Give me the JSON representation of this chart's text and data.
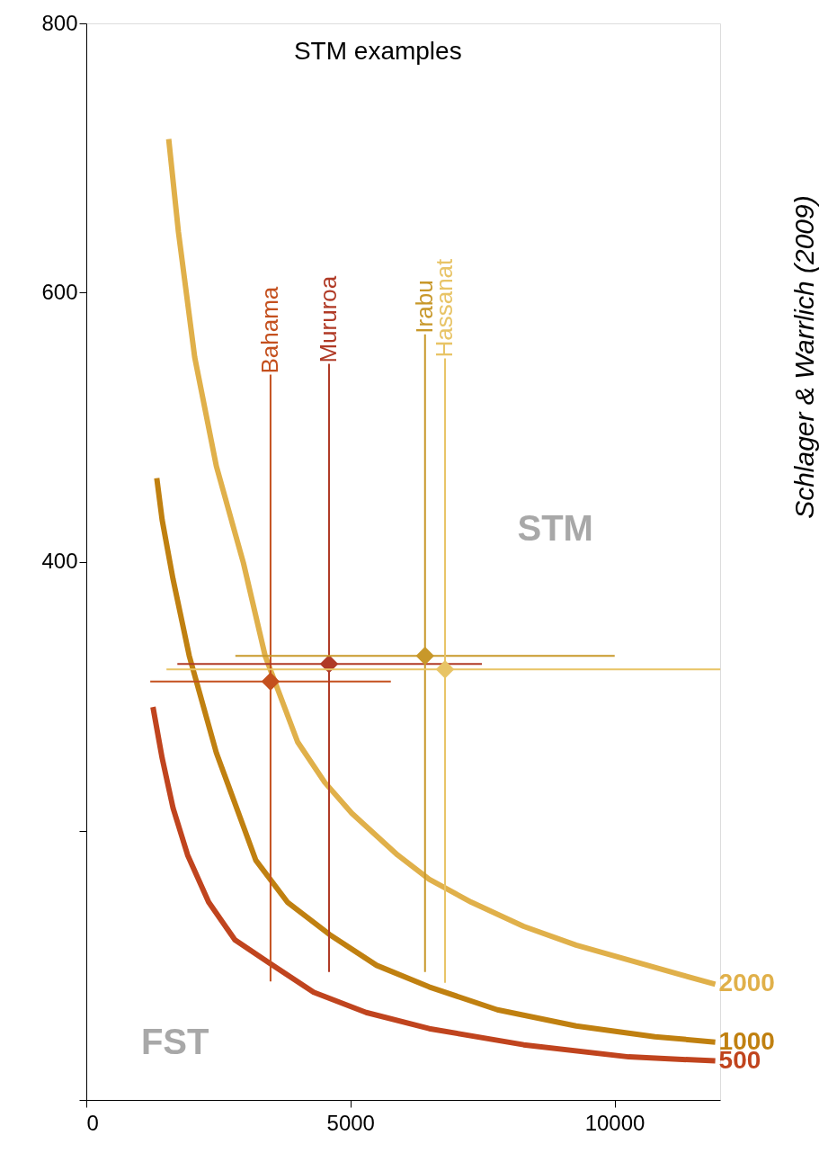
{
  "chart_data": {
    "type": "line",
    "title": "STM examples",
    "xlim": [
      0,
      12000
    ],
    "xticks": [
      0,
      5000,
      10000
    ],
    "ylim": [
      0,
      800
    ],
    "yticks": [
      {
        "value": 0,
        "label": null
      },
      {
        "value": 200,
        "label": null
      },
      400,
      600,
      800
    ],
    "grid": false,
    "marker": "none",
    "line_style": "solid",
    "series": [
      {
        "name": "2000",
        "color": "#e0b04a",
        "x": [
          1560,
          1744,
          2052,
          2462,
          2975,
          3386,
          4001,
          4514,
          5027,
          5894,
          6491,
          7286,
          8280,
          9274,
          10268,
          11262,
          11908
        ],
        "values": [
          714,
          645,
          552,
          471,
          399,
          330,
          266,
          236,
          213,
          182,
          164,
          147,
          129,
          115,
          104,
          93,
          86
        ]
      },
      {
        "name": "1000",
        "color": "#c08010",
        "x": [
          1334,
          1436,
          1642,
          1949,
          2462,
          3211,
          3807,
          4602,
          5497,
          6491,
          7783,
          9274,
          10765,
          11908
        ],
        "values": [
          462,
          431,
          387,
          330,
          258,
          178,
          147,
          123,
          100,
          84,
          67,
          55,
          47,
          43
        ]
      },
      {
        "name": "500",
        "color": "#c0441e",
        "x": [
          1262,
          1436,
          1642,
          1918,
          2316,
          2813,
          3459,
          4304,
          5298,
          6491,
          8280,
          10268,
          11908
        ],
        "values": [
          292,
          254,
          217,
          182,
          147,
          119,
          102,
          80,
          65,
          53,
          41,
          32,
          29
        ]
      },
      {
        "name": "Bahama",
        "type": "scatter",
        "marker": "diamond",
        "color": "#c4501e",
        "x": [
          3488
        ],
        "values": [
          311
        ],
        "errors": [
          [
            88,
            539
          ]
        ],
        "xerrors": [
          [
            1211,
            5766
          ]
        ]
      },
      {
        "name": "Mururoa",
        "type": "scatter",
        "marker": "diamond",
        "color": "#b03a26",
        "x": [
          4596
        ],
        "values": [
          324
        ],
        "errors": [
          [
            95,
            547
          ]
        ],
        "xerrors": [
          [
            1724,
            7490
          ]
        ]
      },
      {
        "name": "Irabu",
        "type": "scatter",
        "marker": "diamond",
        "color": "#c8982a",
        "x": [
          6413
        ],
        "values": [
          330
        ],
        "errors": [
          [
            95,
            569
          ]
        ],
        "xerrors": [
          [
            2822,
            10004
          ]
        ]
      },
      {
        "name": "Hassanat",
        "type": "scatter",
        "marker": "diamond",
        "color": "#e8c466",
        "x": [
          6792
        ],
        "values": [
          320
        ],
        "errors": [
          [
            87,
            551
          ]
        ],
        "xerrors": [
          [
            1518,
            12004
          ]
        ]
      }
    ],
    "annotations": [
      "STM",
      "FST",
      "Schlager & Warrlich (2009)"
    ]
  }
}
